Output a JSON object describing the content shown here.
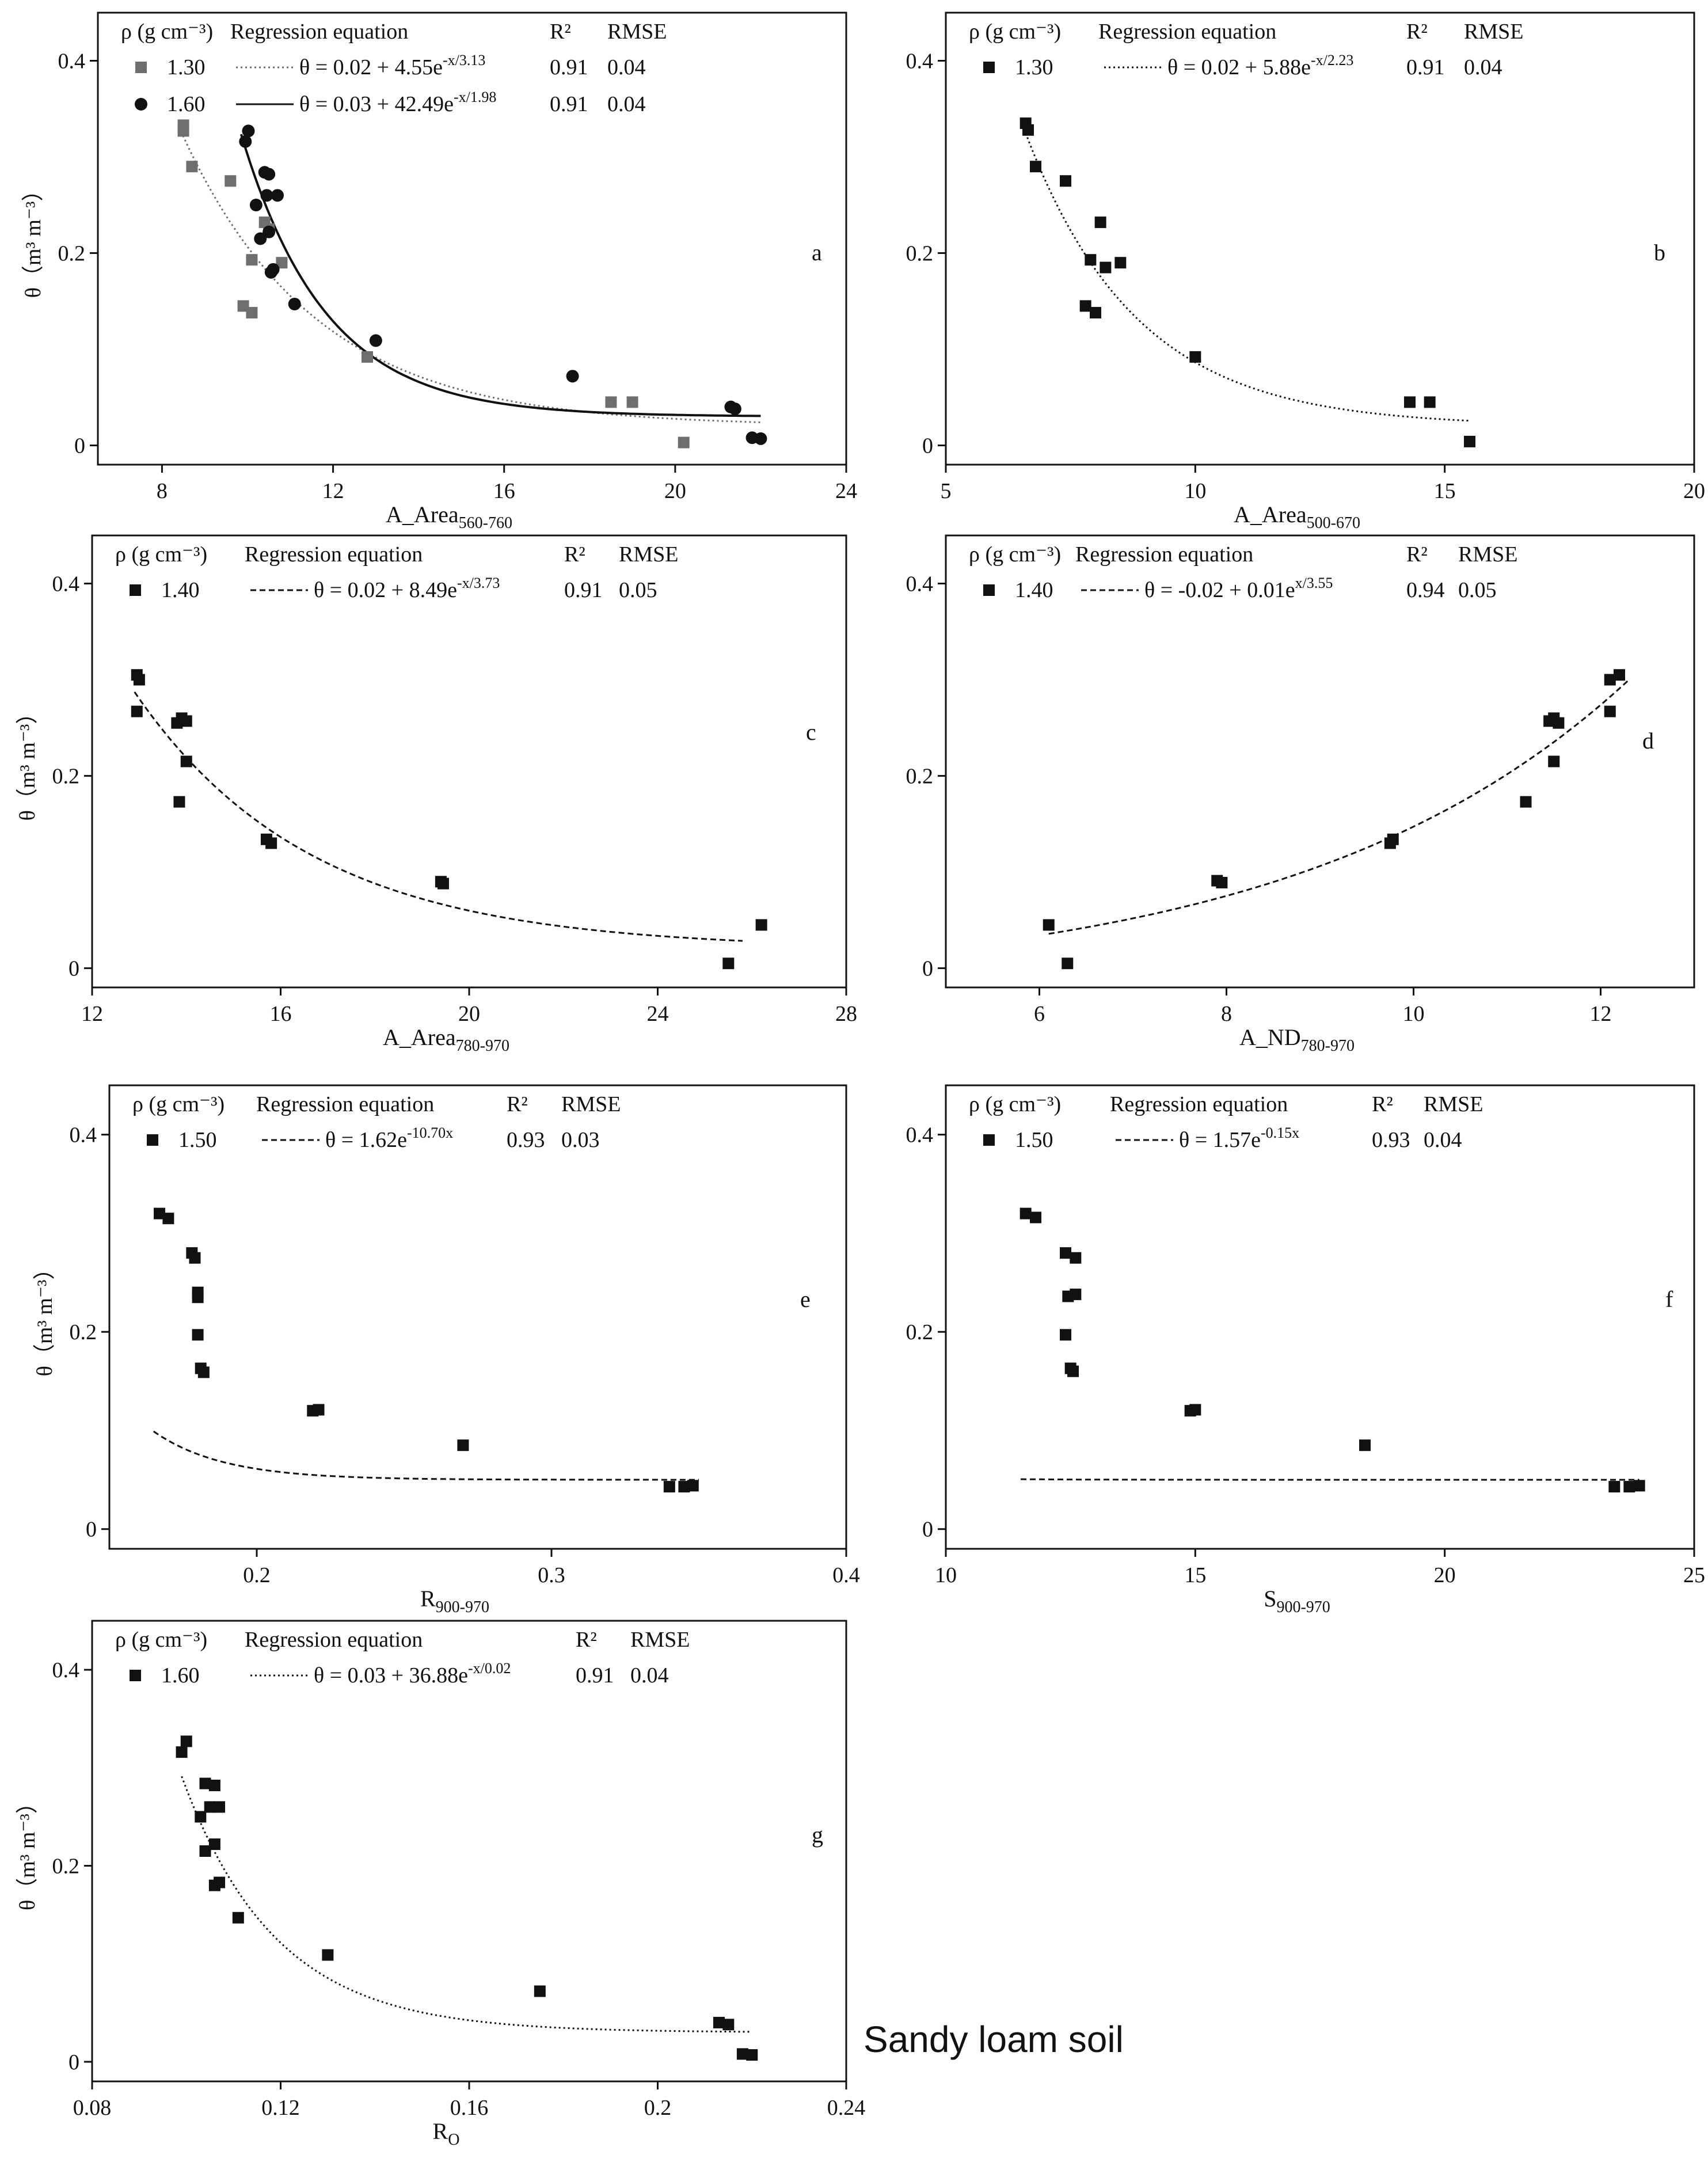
{
  "footer_label": "Sandy loam soil",
  "colors": {
    "black": "#111111",
    "gray": "#6e6e6e",
    "axis": "#111111"
  },
  "chart_data": [
    {
      "id": "a",
      "type": "scatter",
      "panel_letter": "a",
      "xlabel_main": "A_Area",
      "xlabel_sub": "560-760",
      "ylabel": "θ（m³ m⁻³）",
      "xlim": [
        6.5,
        24
      ],
      "ylim": [
        -0.02,
        0.45
      ],
      "xticks": [
        8,
        12,
        16,
        20,
        24
      ],
      "yticks": [
        0,
        0.2,
        0.4
      ],
      "xtick_labels": [
        "8",
        "12",
        "16",
        "20",
        "24"
      ],
      "ytick_labels": [
        "0",
        "0.2",
        "0.4"
      ],
      "legend_header": [
        "ρ (g cm⁻³)",
        "Regression equation",
        "R²",
        "RMSE"
      ],
      "series": [
        {
          "name": "1.30",
          "marker": "square",
          "color": "#6e6e6e",
          "dash": "dotted",
          "equation": "θ = 0.02 + 4.55e^{-x/3.13}",
          "r2": "0.91",
          "rmse": "0.04",
          "fit": {
            "kind": "exp_decay",
            "y0": 0.02,
            "A": 4.55,
            "t": 3.13,
            "x_range": [
              8.4,
              22
            ]
          },
          "points": [
            [
              8.5,
              0.333
            ],
            [
              8.5,
              0.327
            ],
            [
              8.7,
              0.29
            ],
            [
              9.6,
              0.275
            ],
            [
              9.9,
              0.145
            ],
            [
              10.1,
              0.193
            ],
            [
              10.1,
              0.138
            ],
            [
              10.4,
              0.232
            ],
            [
              10.5,
              0.225
            ],
            [
              10.8,
              0.19
            ],
            [
              12.8,
              0.092
            ],
            [
              18.5,
              0.045
            ],
            [
              19,
              0.045
            ],
            [
              20.2,
              0.003
            ]
          ]
        },
        {
          "name": "1.60",
          "marker": "circle",
          "color": "#111111",
          "dash": "solid",
          "equation": "θ = 0.03 + 42.49e^{-x/1.98}",
          "r2": "0.91",
          "rmse": "0.04",
          "fit": {
            "kind": "exp_decay",
            "y0": 0.03,
            "A": 42.49,
            "t": 1.98,
            "x_range": [
              9.85,
              22
            ]
          },
          "points": [
            [
              9.95,
              0.316
            ],
            [
              10.02,
              0.327
            ],
            [
              10.2,
              0.25
            ],
            [
              10.3,
              0.215
            ],
            [
              10.4,
              0.284
            ],
            [
              10.45,
              0.26
            ],
            [
              10.5,
              0.282
            ],
            [
              10.5,
              0.222
            ],
            [
              10.55,
              0.18
            ],
            [
              10.7,
              0.26
            ],
            [
              10.6,
              0.183
            ],
            [
              11.1,
              0.147
            ],
            [
              13.0,
              0.109
            ],
            [
              17.6,
              0.072
            ],
            [
              21.3,
              0.04
            ],
            [
              21.4,
              0.038
            ],
            [
              21.8,
              0.008
            ],
            [
              22.0,
              0.007
            ]
          ]
        }
      ]
    },
    {
      "id": "b",
      "type": "scatter",
      "panel_letter": "b",
      "xlabel_main": "A_Area",
      "xlabel_sub": "500-670",
      "ylabel": "",
      "xlim": [
        5,
        20
      ],
      "ylim": [
        -0.02,
        0.45
      ],
      "xticks": [
        5,
        10,
        15,
        20
      ],
      "yticks": [
        0,
        0.2,
        0.4
      ],
      "xtick_labels": [
        "5",
        "10",
        "15",
        "20"
      ],
      "ytick_labels": [
        "0",
        "0.2",
        "0.4"
      ],
      "legend_header": [
        "ρ (g cm⁻³)",
        "Regression equation",
        "R²",
        "RMSE"
      ],
      "series": [
        {
          "name": "1.30",
          "marker": "square",
          "color": "#111111",
          "dash": "dotted",
          "equation": "θ = 0.02 + 5.88e^{-x/2.23}",
          "r2": "0.91",
          "rmse": "0.04",
          "fit": {
            "kind": "exp_decay",
            "y0": 0.02,
            "A": 5.88,
            "t": 2.23,
            "x_range": [
              6.6,
              15.5
            ]
          },
          "points": [
            [
              6.6,
              0.335
            ],
            [
              6.65,
              0.328
            ],
            [
              6.8,
              0.29
            ],
            [
              7.4,
              0.275
            ],
            [
              7.8,
              0.145
            ],
            [
              7.9,
              0.193
            ],
            [
              8.0,
              0.138
            ],
            [
              8.1,
              0.232
            ],
            [
              8.2,
              0.185
            ],
            [
              8.5,
              0.19
            ],
            [
              10.0,
              0.092
            ],
            [
              14.3,
              0.045
            ],
            [
              14.7,
              0.045
            ],
            [
              15.5,
              0.004
            ]
          ]
        }
      ]
    },
    {
      "id": "c",
      "type": "scatter",
      "panel_letter": "c",
      "xlabel_main": "A_Area",
      "xlabel_sub": "780-970",
      "ylabel": "θ（m³ m⁻³）",
      "xlim": [
        12,
        28
      ],
      "ylim": [
        -0.02,
        0.45
      ],
      "xticks": [
        12,
        16,
        20,
        24,
        28
      ],
      "yticks": [
        0,
        0.2,
        0.4
      ],
      "xtick_labels": [
        "12",
        "16",
        "20",
        "24",
        "28"
      ],
      "ytick_labels": [
        "0",
        "0.2",
        "0.4"
      ],
      "legend_header": [
        "ρ (g cm⁻³)",
        "Regression equation",
        "R²",
        "RMSE"
      ],
      "series": [
        {
          "name": "1.40",
          "marker": "square",
          "color": "#111111",
          "dash": "dashed",
          "equation": "θ = 0.02 + 8.49e^{-x/3.73}",
          "r2": "0.91",
          "rmse": "0.05",
          "fit": {
            "kind": "exp_decay",
            "y0": 0.02,
            "A": 8.49,
            "t": 3.73,
            "x_range": [
              12.9,
              25.8
            ]
          },
          "points": [
            [
              12.95,
              0.305
            ],
            [
              13.0,
              0.3
            ],
            [
              12.95,
              0.267
            ],
            [
              13.8,
              0.255
            ],
            [
              13.9,
              0.26
            ],
            [
              14.0,
              0.257
            ],
            [
              13.85,
              0.173
            ],
            [
              14.0,
              0.215
            ],
            [
              15.7,
              0.134
            ],
            [
              15.8,
              0.13
            ],
            [
              19.4,
              0.09
            ],
            [
              19.45,
              0.088
            ],
            [
              25.5,
              0.005
            ],
            [
              26.2,
              0.045
            ]
          ]
        }
      ]
    },
    {
      "id": "d",
      "type": "scatter",
      "panel_letter": "d",
      "xlabel_main": "A_ND",
      "xlabel_sub": "780-970",
      "ylabel": "",
      "xlim": [
        5,
        13
      ],
      "ylim": [
        -0.02,
        0.45
      ],
      "xticks": [
        6,
        8,
        10,
        12
      ],
      "yticks": [
        0,
        0.2,
        0.4
      ],
      "xtick_labels": [
        "6",
        "8",
        "10",
        "12"
      ],
      "ytick_labels": [
        "0",
        "0.2",
        "0.4"
      ],
      "legend_header": [
        "ρ (g cm⁻³)",
        "Regression equation",
        "R²",
        "RMSE"
      ],
      "series": [
        {
          "name": "1.40",
          "marker": "square",
          "color": "#111111",
          "dash": "dashed",
          "equation": "θ = -0.02 + 0.01e^{x/3.55}",
          "r2": "0.94",
          "rmse": "0.05",
          "fit": {
            "kind": "exp_growth",
            "y0": -0.02,
            "A": 0.01,
            "t": 3.55,
            "x_range": [
              6.1,
              12.3
            ]
          },
          "points": [
            [
              6.1,
              0.045
            ],
            [
              6.3,
              0.005
            ],
            [
              7.9,
              0.091
            ],
            [
              7.95,
              0.089
            ],
            [
              9.75,
              0.13
            ],
            [
              9.78,
              0.134
            ],
            [
              11.2,
              0.173
            ],
            [
              11.45,
              0.257
            ],
            [
              11.5,
              0.26
            ],
            [
              11.55,
              0.255
            ],
            [
              11.5,
              0.215
            ],
            [
              12.1,
              0.267
            ],
            [
              12.1,
              0.3
            ],
            [
              12.2,
              0.305
            ]
          ]
        }
      ]
    },
    {
      "id": "e",
      "type": "scatter",
      "panel_letter": "e",
      "xlabel_main": "R",
      "xlabel_sub": "900-970",
      "ylabel": "θ（m³ m⁻³）",
      "xlim": [
        0.15,
        0.4
      ],
      "ylim": [
        -0.02,
        0.45
      ],
      "xticks": [
        0.2,
        0.3,
        0.4
      ],
      "yticks": [
        0,
        0.2,
        0.4
      ],
      "xtick_labels": [
        "0.2",
        "0.3",
        "0.4"
      ],
      "ytick_labels": [
        "0",
        "0.2",
        "0.4"
      ],
      "legend_header": [
        "ρ (g cm⁻³)",
        "Regression equation",
        "R²",
        "RMSE"
      ],
      "series": [
        {
          "name": "1.50",
          "marker": "square",
          "color": "#111111",
          "dash": "dashed",
          "equation": "θ = 1.62e^{-10.70x}",
          "r2": "0.93",
          "rmse": "0.03",
          "fit": {
            "kind": "display_decay",
            "y0": 0.05,
            "A": 55,
            "t": 0.0235,
            "x_range": [
              0.165,
              0.35
            ]
          },
          "points": [
            [
              0.167,
              0.32
            ],
            [
              0.17,
              0.315
            ],
            [
              0.178,
              0.28
            ],
            [
              0.179,
              0.275
            ],
            [
              0.18,
              0.24
            ],
            [
              0.18,
              0.235
            ],
            [
              0.18,
              0.197
            ],
            [
              0.181,
              0.163
            ],
            [
              0.182,
              0.159
            ],
            [
              0.219,
              0.12
            ],
            [
              0.221,
              0.121
            ],
            [
              0.27,
              0.085
            ],
            [
              0.34,
              0.043
            ],
            [
              0.345,
              0.043
            ],
            [
              0.348,
              0.044
            ]
          ]
        }
      ]
    },
    {
      "id": "f",
      "type": "scatter",
      "panel_letter": "f",
      "xlabel_main": "S",
      "xlabel_sub": "900-970",
      "ylabel": "",
      "xlim": [
        10,
        25
      ],
      "ylim": [
        -0.02,
        0.45
      ],
      "xticks": [
        10,
        15,
        20,
        25
      ],
      "yticks": [
        0,
        0.2,
        0.4
      ],
      "xtick_labels": [
        "10",
        "15",
        "20",
        "25"
      ],
      "ytick_labels": [
        "0",
        "0.2",
        "0.4"
      ],
      "legend_header": [
        "ρ (g cm⁻³)",
        "Regression equation",
        "R²",
        "RMSE"
      ],
      "series": [
        {
          "name": "1.50",
          "marker": "square",
          "color": "#111111",
          "dash": "dashed",
          "equation": "θ = 1.57e^{-0.15x}",
          "r2": "0.93",
          "rmse": "0.04",
          "fit": {
            "kind": "display_decay",
            "y0": 0.05,
            "A": 2.2,
            "t": 1.4,
            "x_range": [
              11.5,
              23.9
            ]
          },
          "points": [
            [
              11.6,
              0.32
            ],
            [
              11.8,
              0.316
            ],
            [
              12.4,
              0.28
            ],
            [
              12.6,
              0.275
            ],
            [
              12.45,
              0.236
            ],
            [
              12.6,
              0.238
            ],
            [
              12.4,
              0.197
            ],
            [
              12.5,
              0.163
            ],
            [
              12.55,
              0.16
            ],
            [
              14.9,
              0.12
            ],
            [
              15.0,
              0.121
            ],
            [
              18.4,
              0.085
            ],
            [
              23.4,
              0.043
            ],
            [
              23.7,
              0.043
            ],
            [
              23.9,
              0.044
            ]
          ]
        }
      ]
    },
    {
      "id": "g",
      "type": "scatter",
      "panel_letter": "g",
      "xlabel_main": "R",
      "xlabel_sub": "O",
      "ylabel": "θ（m³ m⁻³）",
      "xlim": [
        0.08,
        0.24
      ],
      "ylim": [
        -0.02,
        0.45
      ],
      "xticks": [
        0.08,
        0.12,
        0.16,
        0.2,
        0.24
      ],
      "yticks": [
        0,
        0.2,
        0.4
      ],
      "xtick_labels": [
        "0.08",
        "0.12",
        "0.16",
        "0.2",
        "0.24"
      ],
      "ytick_labels": [
        "0",
        "0.2",
        "0.4"
      ],
      "legend_header": [
        "ρ (g cm⁻³)",
        "Regression equation",
        "R²",
        "RMSE"
      ],
      "series": [
        {
          "name": "1.60",
          "marker": "square",
          "color": "#111111",
          "dash": "dotted",
          "equation": "θ = 0.03 + 36.88e^{-x/0.02}",
          "r2": "0.91",
          "rmse": "0.04",
          "fit": {
            "kind": "exp_decay",
            "y0": 0.03,
            "A": 36.88,
            "t": 0.02,
            "x_range": [
              0.099,
              0.22
            ]
          },
          "points": [
            [
              0.099,
              0.316
            ],
            [
              0.1,
              0.327
            ],
            [
              0.103,
              0.25
            ],
            [
              0.104,
              0.215
            ],
            [
              0.104,
              0.284
            ],
            [
              0.105,
              0.26
            ],
            [
              0.106,
              0.282
            ],
            [
              0.106,
              0.222
            ],
            [
              0.106,
              0.18
            ],
            [
              0.107,
              0.26
            ],
            [
              0.107,
              0.183
            ],
            [
              0.111,
              0.147
            ],
            [
              0.13,
              0.109
            ],
            [
              0.175,
              0.072
            ],
            [
              0.213,
              0.04
            ],
            [
              0.215,
              0.038
            ],
            [
              0.218,
              0.008
            ],
            [
              0.22,
              0.007
            ]
          ]
        }
      ]
    }
  ]
}
